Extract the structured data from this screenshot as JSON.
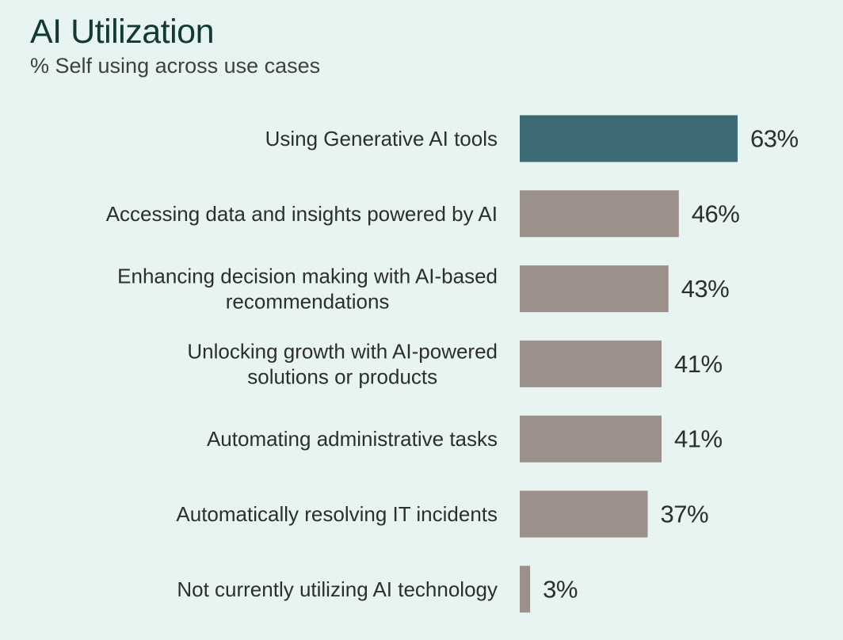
{
  "colors": {
    "background": "#e8f4f2",
    "highlight_bar": "#3d6b75",
    "default_bar": "#9b918a",
    "text": "#2b2f2e",
    "title": "#123a33"
  },
  "chart_data": {
    "type": "bar",
    "orientation": "horizontal",
    "title": "AI Utilization",
    "subtitle": "% Self using across use cases",
    "categories": [
      "Using Generative AI tools",
      "Accessing data and insights powered by AI",
      "Enhancing decision making with AI-based recommendations",
      "Unlocking growth with AI-powered solutions or products",
      "Automating administrative tasks",
      "Automatically resolving IT incidents",
      "Not currently utilizing AI technology"
    ],
    "category_lines": [
      [
        "Using Generative AI tools"
      ],
      [
        "Accessing data and insights powered by AI"
      ],
      [
        "Enhancing decision making with AI-based",
        "recommendations"
      ],
      [
        "Unlocking growth with AI-powered",
        "solutions or products"
      ],
      [
        "Automating administrative tasks"
      ],
      [
        "Automatically resolving IT incidents"
      ],
      [
        "Not currently utilizing AI technology"
      ]
    ],
    "values": [
      63,
      46,
      43,
      41,
      41,
      37,
      3
    ],
    "value_labels": [
      "63%",
      "46%",
      "43%",
      "41%",
      "41%",
      "37%",
      "3%"
    ],
    "highlighted_index": 0,
    "xlim": [
      0,
      100
    ],
    "grid": false,
    "legend": "none"
  }
}
